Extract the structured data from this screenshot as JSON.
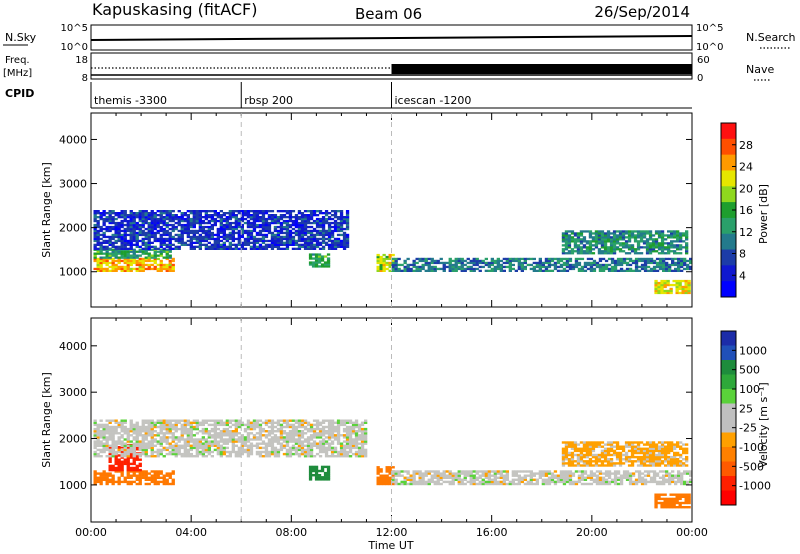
{
  "header": {
    "station": "Kapuskasing (fitACF)",
    "beam": "Beam 06",
    "date": "26/Sep/2014"
  },
  "summary_panels": {
    "nsky": {
      "label": "N.Sky",
      "ticks": [
        "10^5",
        "10^0"
      ]
    },
    "nsearch": {
      "label": "N.Search",
      "ticks": [
        "10^5",
        "10^0"
      ]
    },
    "freq": {
      "label": "Freq.",
      "unit": "[MHz]",
      "ticks": [
        "18",
        "8"
      ]
    },
    "nave": {
      "label": "Nave",
      "ticks": [
        "60",
        "0"
      ]
    },
    "cpid": {
      "label": "CPID",
      "segments": [
        {
          "name": "themis -3300",
          "start_hour": 0
        },
        {
          "name": "rbsp 200",
          "start_hour": 6
        },
        {
          "name": "icescan -1200",
          "start_hour": 12
        }
      ]
    }
  },
  "chart_data": [
    {
      "type": "heatmap",
      "name": "power",
      "ylabel": "Slant Range [km]",
      "ylim": [
        200,
        4600
      ],
      "yticks": [
        1000,
        2000,
        3000,
        4000
      ],
      "xlim": [
        0,
        24
      ],
      "colorbar": {
        "label": "Power [dB]",
        "ticks": [
          "28",
          "24",
          "20",
          "16",
          "12",
          "8",
          "4"
        ],
        "colors": [
          "#ff1010",
          "#ff4f00",
          "#ff9a00",
          "#e6e600",
          "#8fd81e",
          "#1e9e2e",
          "#2aa06a",
          "#237a8c",
          "#1c3ca8",
          "#1018d0",
          "#0000ff"
        ]
      },
      "echo_regions": [
        {
          "t": [
            0.1,
            3.3
          ],
          "r": [
            1000,
            1300
          ],
          "level": 24
        },
        {
          "t": [
            0.1,
            3.2
          ],
          "r": [
            1300,
            1500
          ],
          "level": 14
        },
        {
          "t": [
            0.1,
            10.2
          ],
          "r": [
            1500,
            2400
          ],
          "level": 6
        },
        {
          "t": [
            8.7,
            9.5
          ],
          "r": [
            1100,
            1400
          ],
          "level": 14
        },
        {
          "t": [
            11.4,
            12.0
          ],
          "r": [
            1000,
            1400
          ],
          "level": 20
        },
        {
          "t": [
            12.0,
            23.9
          ],
          "r": [
            1000,
            1300
          ],
          "level": 10
        },
        {
          "t": [
            18.8,
            23.8
          ],
          "r": [
            1400,
            1900
          ],
          "level": 12
        },
        {
          "t": [
            22.5,
            23.9
          ],
          "r": [
            500,
            800
          ],
          "level": 22
        }
      ]
    },
    {
      "type": "heatmap",
      "name": "velocity",
      "ylabel": "Slant Range [km]",
      "xlabel": "Time UT",
      "ylim": [
        200,
        4600
      ],
      "yticks": [
        1000,
        2000,
        3000,
        4000
      ],
      "xlim": [
        0,
        24
      ],
      "xticks": [
        "00:00",
        "04:00",
        "08:00",
        "12:00",
        "16:00",
        "20:00",
        "00:00"
      ],
      "colorbar": {
        "label": "Velocity [m s⁻¹]",
        "ticks": [
          "1000",
          "500",
          "100",
          "25",
          "-25",
          "-100",
          "-500",
          "-1000"
        ],
        "colors": [
          "#1c2ca8",
          "#2050b8",
          "#1e8c3c",
          "#2ea83a",
          "#5ad23a",
          "#c0c0c0",
          "#c0c0c0",
          "#ffa000",
          "#ff8000",
          "#ff5a00",
          "#ff2000",
          "#ff0000"
        ]
      },
      "echo_regions": [
        {
          "t": [
            0.1,
            3.3
          ],
          "r": [
            1000,
            1300
          ],
          "vel": -300
        },
        {
          "t": [
            0.7,
            2.0
          ],
          "r": [
            1300,
            1850
          ],
          "vel": -700
        },
        {
          "t": [
            0.1,
            11.0
          ],
          "r": [
            1600,
            2400
          ],
          "vel": 0
        },
        {
          "t": [
            8.7,
            9.5
          ],
          "r": [
            1100,
            1400
          ],
          "vel": 150
        },
        {
          "t": [
            11.4,
            12.0
          ],
          "r": [
            1000,
            1400
          ],
          "vel": -200
        },
        {
          "t": [
            12.0,
            23.9
          ],
          "r": [
            1000,
            1300
          ],
          "vel": 0
        },
        {
          "t": [
            18.8,
            23.8
          ],
          "r": [
            1400,
            1900
          ],
          "vel": -40
        },
        {
          "t": [
            22.5,
            23.9
          ],
          "r": [
            500,
            800
          ],
          "vel": -300
        }
      ]
    }
  ]
}
